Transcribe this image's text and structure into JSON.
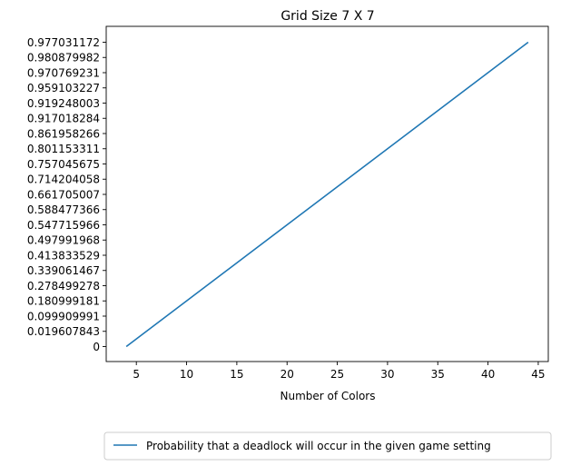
{
  "chart_data": {
    "type": "line",
    "title": "Grid Size 7 X 7",
    "xlabel": "Number of Colors",
    "ylabel": "",
    "xlim": [
      2.0,
      46.0
    ],
    "x_ticks": [
      5,
      10,
      15,
      20,
      25,
      30,
      35,
      40,
      45
    ],
    "y_categories": [
      "0",
      "0.019607843",
      "0.099909991",
      "0.180999181",
      "0.278499278",
      "0.339061467",
      "0.413833529",
      "0.497991968",
      "0.547715966",
      "0.588477366",
      "0.661705007",
      "0.714204058",
      "0.757045675",
      "0.801153311",
      "0.861958266",
      "0.917018284",
      "0.919248003",
      "0.959103227",
      "0.970769231",
      "0.980879982",
      "0.977031172"
    ],
    "series": [
      {
        "name": "Probability that a deadlock will occur in the given game setting",
        "color": "#1f77b4",
        "x": [
          4,
          6,
          8,
          10,
          12,
          14,
          16,
          18,
          20,
          22,
          24,
          26,
          28,
          30,
          32,
          34,
          36,
          38,
          40,
          42,
          44
        ],
        "y": [
          "0",
          "0.019607843",
          "0.099909991",
          "0.180999181",
          "0.278499278",
          "0.339061467",
          "0.413833529",
          "0.497991968",
          "0.547715966",
          "0.588477366",
          "0.661705007",
          "0.714204058",
          "0.757045675",
          "0.801153311",
          "0.861958266",
          "0.917018284",
          "0.919248003",
          "0.959103227",
          "0.970769231",
          "0.980879982",
          "0.977031172"
        ]
      }
    ],
    "legend": "bottom-center",
    "grid": false
  }
}
